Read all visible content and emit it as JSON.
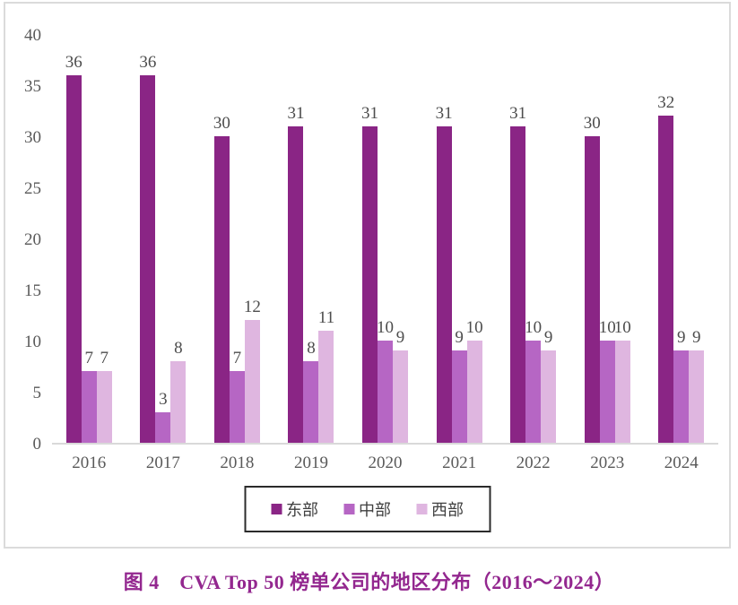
{
  "chart_data": {
    "type": "bar",
    "title": "图 4　CVA Top 50 榜单公司的地区分布（2016～2024）",
    "categories": [
      "2016",
      "2017",
      "2018",
      "2019",
      "2020",
      "2021",
      "2022",
      "2023",
      "2024"
    ],
    "series": [
      {
        "name": "东部",
        "color": "#8A2585",
        "values": [
          36,
          36,
          30,
          31,
          31,
          31,
          31,
          30,
          32
        ]
      },
      {
        "name": "中部",
        "color": "#B666C4",
        "values": [
          7,
          3,
          7,
          8,
          10,
          9,
          10,
          10,
          9
        ]
      },
      {
        "name": "西部",
        "color": "#DFB6E0",
        "values": [
          7,
          8,
          12,
          11,
          9,
          10,
          9,
          10,
          9
        ]
      }
    ],
    "xlabel": "",
    "ylabel": "",
    "ylim": [
      0,
      40
    ],
    "yticks": [
      0,
      5,
      10,
      15,
      20,
      25,
      30,
      35,
      40
    ],
    "grid": false,
    "legend_position": "bottom-inside",
    "data_labels": true
  },
  "style": {
    "frame_border_color": "#DBDBDB",
    "axis_line_color": "#D9D9D9",
    "tick_label_color": "#595959",
    "data_label_color": "#4d4d4d",
    "legend_border_color": "#2b2b2b",
    "caption_color": "#93278F"
  }
}
